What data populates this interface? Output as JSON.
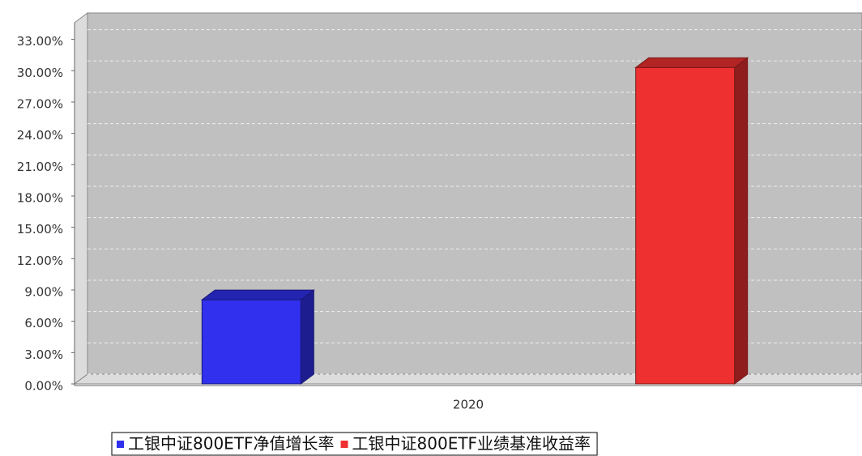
{
  "chart_data": {
    "type": "bar3d",
    "categories": [
      "2020"
    ],
    "series": [
      {
        "name": "工银中证800ETF净值增长率",
        "color": "#3030ee",
        "values": [
          8.06
        ]
      },
      {
        "name": "工银中证800ETF业绩基准收益率",
        "color": "#ee3030",
        "values": [
          30.3
        ]
      }
    ],
    "ylim": [
      0,
      34.6
    ],
    "yticks": [
      {
        "value": 0,
        "label": "0.00%"
      },
      {
        "value": 3,
        "label": "3.00%"
      },
      {
        "value": 6,
        "label": "6.00%"
      },
      {
        "value": 9,
        "label": "9.00%"
      },
      {
        "value": 12,
        "label": "12.00%"
      },
      {
        "value": 15,
        "label": "15.00%"
      },
      {
        "value": 18,
        "label": "18.00%"
      },
      {
        "value": 21,
        "label": "21.00%"
      },
      {
        "value": 24,
        "label": "24.00%"
      },
      {
        "value": 27,
        "label": "27.00%"
      },
      {
        "value": 30,
        "label": "30.00%"
      },
      {
        "value": 33,
        "label": "33.00%"
      }
    ],
    "grid": true
  }
}
